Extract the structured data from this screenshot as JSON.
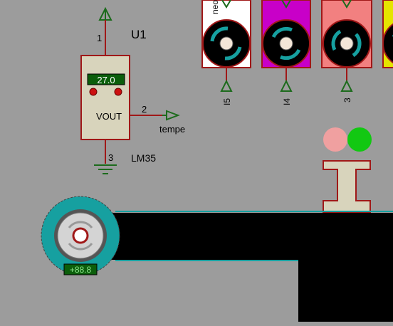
{
  "colors": {
    "background": "#9c9c9c",
    "wire": "#a01818",
    "terminal": "#1c6b1c",
    "body_fill": "#d8d4bc",
    "lcd": "#0b5e0b",
    "lcd_text": "#ffffff",
    "teal": "#16a0a0",
    "magenta": "#c800c8",
    "salmon": "#f28080",
    "yellow": "#e5e500",
    "belt": "#000000",
    "led_red": "#f0a0a0",
    "led_green": "#12c812"
  },
  "sensor": {
    "ref": "U1",
    "part": "LM35",
    "display": "27.0",
    "vout_label": "VOUT",
    "pin1": "1",
    "pin2": "2",
    "pin3": "3",
    "net_output": "tempe"
  },
  "motors": [
    {
      "color": "magenta",
      "pin_label": "I4"
    },
    {
      "color": "salmon",
      "pin_label": "3"
    }
  ],
  "motor_first": {
    "pin_label": "I5",
    "top_text": "neo"
  },
  "conveyor_motor": {
    "display": "+88.8"
  },
  "indicators": [
    "red",
    "green"
  ]
}
